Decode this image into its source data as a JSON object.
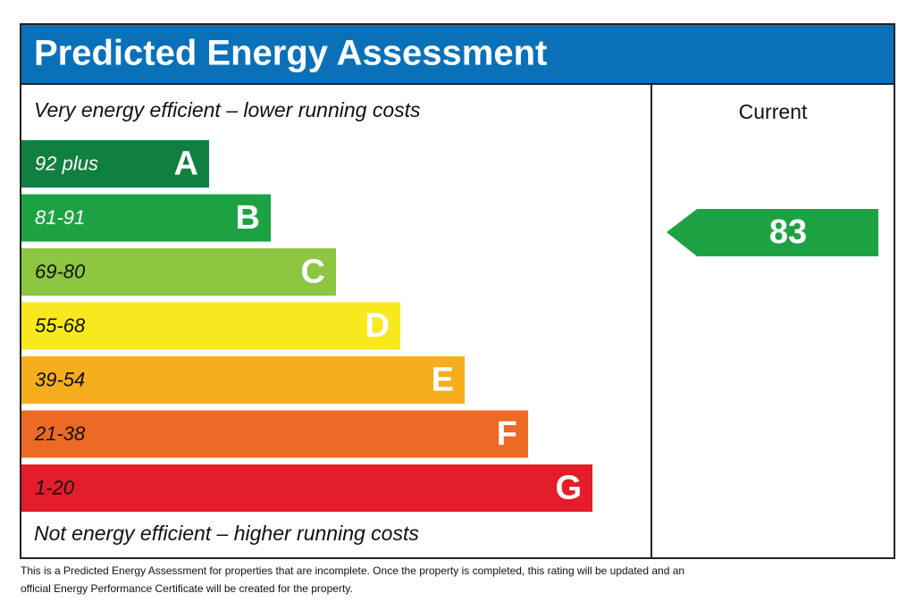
{
  "header": {
    "title": "Predicted Energy Assessment"
  },
  "top_note": "Very energy efficient – lower running costs",
  "bottom_note": "Not energy efficient – higher running costs",
  "bands": [
    {
      "range": "92 plus",
      "letter": "A"
    },
    {
      "range": "81-91",
      "letter": "B"
    },
    {
      "range": "69-80",
      "letter": "C"
    },
    {
      "range": "55-68",
      "letter": "D"
    },
    {
      "range": "39-54",
      "letter": "E"
    },
    {
      "range": "21-38",
      "letter": "F"
    },
    {
      "range": "1-20",
      "letter": "G"
    }
  ],
  "current": {
    "label": "Current",
    "rating": 83
  },
  "footer": [
    "This is a Predicted Energy Assessment for properties that are incomplete. Once the property is completed, this rating will be updated and an",
    "official Energy Performance Certificate will be created for the property."
  ]
}
